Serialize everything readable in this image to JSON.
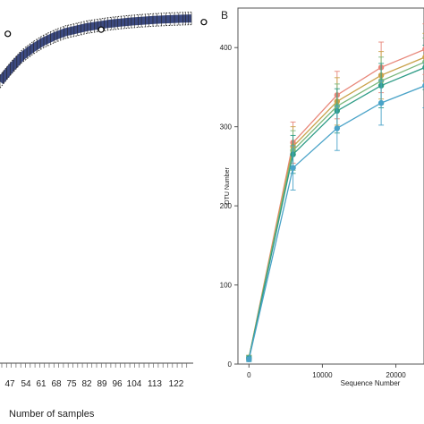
{
  "panels": {
    "left": {
      "xlabel": "Number of samples"
    },
    "right": {
      "label": "B",
      "xlabel": "Sequence Number",
      "ylabel": "OTU Number"
    }
  },
  "colors": {
    "left_band": "#1a2a6c",
    "left_marker": "#000000",
    "series": [
      "#e8877a",
      "#c9a24a",
      "#7ab77a",
      "#2e9c86",
      "#4aa3c8"
    ]
  },
  "chart_data": [
    {
      "type": "line",
      "title": "",
      "xlabel": "Number of samples",
      "ylabel": "",
      "x_tick_labels": [
        "47",
        "54",
        "61",
        "68",
        "75",
        "82",
        "89",
        "96",
        "104",
        "113",
        "122"
      ],
      "x_range": [
        5,
        128
      ],
      "series": [
        {
          "x": [
            5,
            12,
            19,
            26,
            33,
            40,
            47,
            54,
            61,
            68,
            75,
            82,
            89,
            96,
            104,
            113,
            122,
            128
          ],
          "values": [
            0.62,
            0.7,
            0.77,
            0.82,
            0.86,
            0.89,
            0.915,
            0.93,
            0.945,
            0.955,
            0.965,
            0.972,
            0.978,
            0.983,
            0.988,
            0.992,
            0.995,
            0.997
          ]
        }
      ]
    },
    {
      "type": "line",
      "title": "",
      "xlabel": "Sequence Number",
      "ylabel": "OTU Number",
      "x": [
        0,
        6000,
        12000,
        18000,
        24000
      ],
      "xlim": [
        -1500,
        27000
      ],
      "ylim": [
        0,
        450
      ],
      "x_ticks": [
        0,
        10000,
        20000
      ],
      "y_ticks": [
        0,
        100,
        200,
        300,
        400
      ],
      "grid": false,
      "series": [
        {
          "values": [
            8,
            280,
            340,
            375,
            398
          ],
          "errors": [
            3,
            26,
            30,
            32,
            32
          ]
        },
        {
          "values": [
            8,
            275,
            332,
            365,
            388
          ],
          "errors": [
            3,
            25,
            30,
            30,
            30
          ]
        },
        {
          "values": [
            8,
            270,
            326,
            358,
            382
          ],
          "errors": [
            3,
            25,
            28,
            30,
            30
          ]
        },
        {
          "values": [
            7,
            265,
            320,
            352,
            375
          ],
          "errors": [
            3,
            24,
            28,
            28,
            28
          ]
        },
        {
          "values": [
            6,
            248,
            298,
            330,
            352
          ],
          "errors": [
            3,
            28,
            28,
            28,
            28
          ]
        }
      ]
    }
  ]
}
